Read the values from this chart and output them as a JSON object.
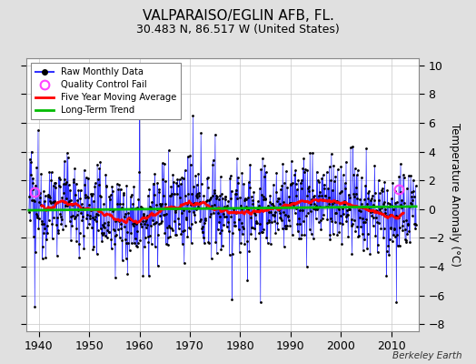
{
  "title": "VALPARAISO/EGLIN AFB, FL.",
  "subtitle": "30.483 N, 86.517 W (United States)",
  "ylabel": "Temperature Anomaly (°C)",
  "attribution": "Berkeley Earth",
  "ylim": [
    -8.5,
    10.5
  ],
  "yticks": [
    -8,
    -6,
    -4,
    -2,
    0,
    2,
    4,
    6,
    8,
    10
  ],
  "xlim": [
    1937.5,
    2015.5
  ],
  "xticks": [
    1940,
    1950,
    1960,
    1970,
    1980,
    1990,
    2000,
    2010
  ],
  "bg_color": "#e0e0e0",
  "plot_bg_color": "#ffffff",
  "line_color": "#3333ff",
  "fill_color": "#aaaaff",
  "ma_color": "#ff0000",
  "trend_color": "#00bb00",
  "qc_color": "#ff44ff",
  "title_fontsize": 11,
  "subtitle_fontsize": 9,
  "seed": 12345,
  "n_months": 924,
  "start_year": 1938.0417,
  "qc_fail_times": [
    1939.08,
    2011.5
  ],
  "qc_fail_vals": [
    1.2,
    1.4
  ]
}
